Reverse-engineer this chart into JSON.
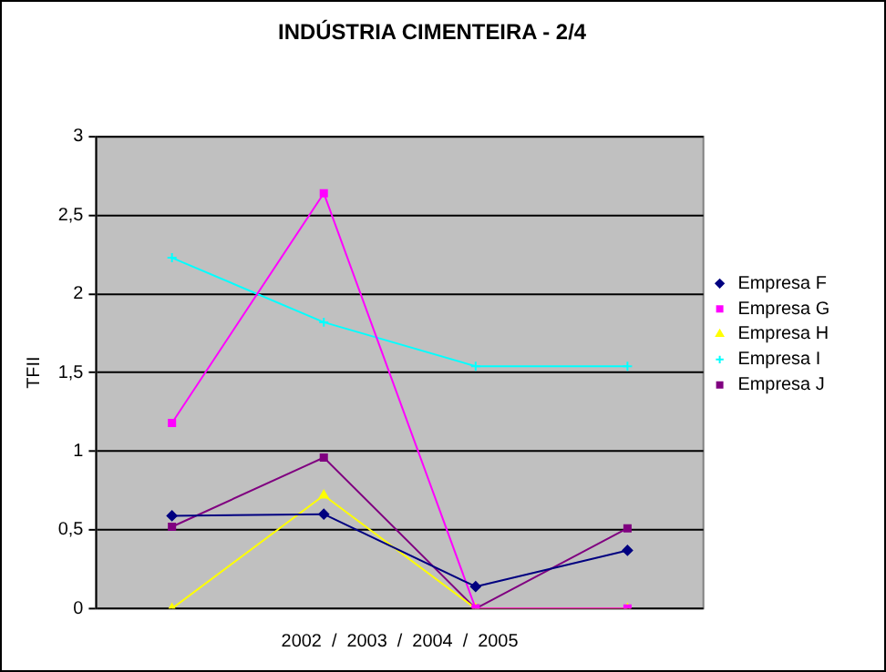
{
  "chart_data": {
    "type": "line",
    "title": "INDÚSTRIA CIMENTEIRA - 2/4",
    "xlabel": "2002  /  2003  /  2004  /  2005",
    "ylabel": "TFII",
    "categories": [
      null,
      null,
      null,
      null
    ],
    "series": [
      {
        "name": "Empresa F",
        "color": "#000080",
        "marker": "diamond",
        "values": [
          0.59,
          0.6,
          0.14,
          0.37
        ]
      },
      {
        "name": "Empresa G",
        "color": "#ff00ff",
        "marker": "square",
        "values": [
          1.18,
          2.64,
          0,
          0
        ]
      },
      {
        "name": "Empresa H",
        "color": "#ffff00",
        "marker": "triangle",
        "values": [
          0,
          0.72,
          0,
          0
        ]
      },
      {
        "name": "Empresa I",
        "color": "#00ffff",
        "marker": "cross",
        "values": [
          2.23,
          1.82,
          1.54,
          1.54
        ]
      },
      {
        "name": "Empresa J",
        "color": "#800080",
        "marker": "square",
        "values": [
          0.52,
          0.96,
          0,
          0.51
        ]
      }
    ],
    "ylim": [
      0,
      3
    ],
    "yticks": [
      0,
      {
        "value": 0.5,
        "label": "0,5"
      },
      1,
      {
        "value": 1.5,
        "label": "1,5"
      },
      2,
      {
        "value": 2.5,
        "label": "2,5"
      },
      3
    ],
    "grid": "y",
    "legend": "right"
  }
}
